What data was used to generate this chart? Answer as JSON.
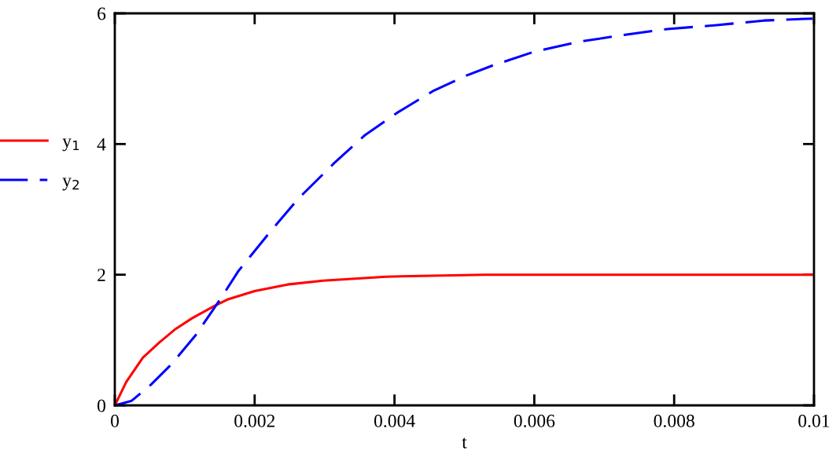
{
  "chart_data": {
    "type": "line",
    "xlabel": "t",
    "xlim": [
      0,
      0.01
    ],
    "ylim": [
      0,
      6
    ],
    "xticks": [
      0,
      0.002,
      0.004,
      0.006,
      0.008,
      0.01
    ],
    "yticks": [
      0,
      2,
      4,
      6
    ],
    "grid": false,
    "legend": "left",
    "marker": "none",
    "series": [
      {
        "name": "y$_{1}$",
        "color": "#ff0000",
        "line_style": "solid",
        "x": [
          0,
          0.000164,
          0.0004,
          0.000634,
          0.00087,
          0.0011,
          0.00142,
          0.00161,
          0.002,
          0.00247,
          0.00298,
          0.00388,
          0.00528,
          0.01
        ],
        "values": [
          0,
          0.36,
          0.73,
          0.96,
          1.17,
          1.33,
          1.52,
          1.62,
          1.75,
          1.85,
          1.91,
          1.97,
          2.0,
          2.0
        ]
      },
      {
        "name": "y$_{2}$",
        "color": "#0000ff",
        "line_style": "dashed",
        "x": [
          0,
          0.00024,
          0.00052,
          0.00081,
          0.00116,
          0.00153,
          0.00177,
          0.00224,
          0.00263,
          0.00314,
          0.00357,
          0.00404,
          0.00455,
          0.00501,
          0.0054,
          0.00599,
          0.00661,
          0.00728,
          0.0079,
          0.00861,
          0.00928,
          0.00998
        ],
        "values": [
          0,
          0.07,
          0.32,
          0.63,
          1.08,
          1.66,
          2.06,
          2.68,
          3.17,
          3.71,
          4.13,
          4.48,
          4.81,
          5.04,
          5.2,
          5.41,
          5.56,
          5.67,
          5.76,
          5.82,
          5.89,
          5.92
        ]
      }
    ]
  }
}
